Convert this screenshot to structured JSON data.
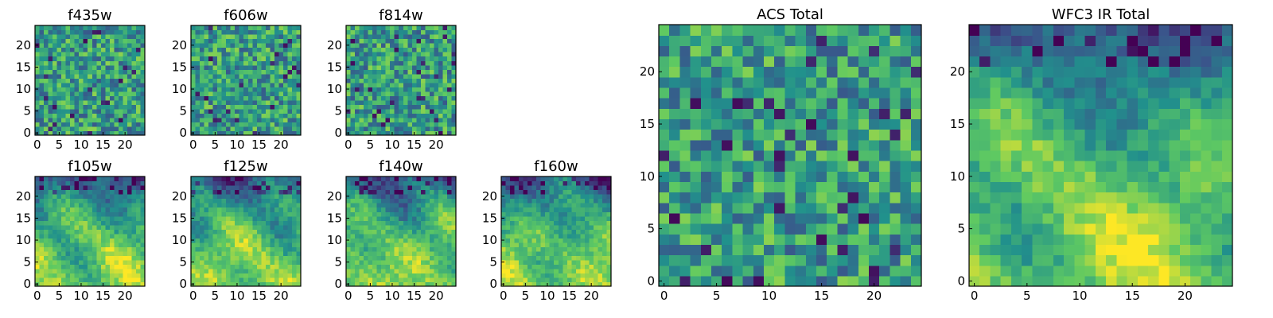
{
  "figure": {
    "description_free": true
  },
  "chart_data": [
    {
      "type": "heatmap",
      "title": "f435w",
      "grid": [
        25,
        25
      ],
      "pattern": "noise",
      "xticks": [
        "0",
        "5",
        "10",
        "15",
        "20"
      ],
      "yticks": [
        "0",
        "5",
        "10",
        "15",
        "20"
      ],
      "xlim": [
        0,
        25
      ],
      "ylim": [
        0,
        25
      ]
    },
    {
      "type": "heatmap",
      "title": "f606w",
      "grid": [
        25,
        25
      ],
      "pattern": "noise",
      "xticks": [
        "0",
        "5",
        "10",
        "15",
        "20"
      ],
      "yticks": [
        "0",
        "5",
        "10",
        "15",
        "20"
      ],
      "xlim": [
        0,
        25
      ],
      "ylim": [
        0,
        25
      ]
    },
    {
      "type": "heatmap",
      "title": "f814w",
      "grid": [
        25,
        25
      ],
      "pattern": "noise",
      "xticks": [
        "0",
        "5",
        "10",
        "15",
        "20"
      ],
      "yticks": [
        "0",
        "5",
        "10",
        "15",
        "20"
      ],
      "xlim": [
        0,
        25
      ],
      "ylim": [
        0,
        25
      ]
    },
    {
      "type": "heatmap",
      "title": "f105w",
      "grid": [
        25,
        25
      ],
      "pattern": "structured",
      "xticks": [
        "0",
        "5",
        "10",
        "15",
        "20"
      ],
      "yticks": [
        "0",
        "5",
        "10",
        "15",
        "20"
      ],
      "xlim": [
        0,
        25
      ],
      "ylim": [
        0,
        25
      ]
    },
    {
      "type": "heatmap",
      "title": "f125w",
      "grid": [
        25,
        25
      ],
      "pattern": "structured",
      "xticks": [
        "0",
        "5",
        "10",
        "15",
        "20"
      ],
      "yticks": [
        "0",
        "5",
        "10",
        "15",
        "20"
      ],
      "xlim": [
        0,
        25
      ],
      "ylim": [
        0,
        25
      ]
    },
    {
      "type": "heatmap",
      "title": "f140w",
      "grid": [
        25,
        25
      ],
      "pattern": "structured",
      "xticks": [
        "0",
        "5",
        "10",
        "15",
        "20"
      ],
      "yticks": [
        "0",
        "5",
        "10",
        "15",
        "20"
      ],
      "xlim": [
        0,
        25
      ],
      "ylim": [
        0,
        25
      ]
    },
    {
      "type": "heatmap",
      "title": "f160w",
      "grid": [
        25,
        25
      ],
      "pattern": "structured",
      "xticks": [
        "0",
        "5",
        "10",
        "15",
        "20"
      ],
      "yticks": [
        "0",
        "5",
        "10",
        "15",
        "20"
      ],
      "xlim": [
        0,
        25
      ],
      "ylim": [
        0,
        25
      ]
    },
    {
      "type": "heatmap",
      "title": "ACS Total",
      "grid": [
        25,
        25
      ],
      "pattern": "noise",
      "xticks": [
        "0",
        "5",
        "10",
        "15",
        "20"
      ],
      "yticks": [
        "0",
        "5",
        "10",
        "15",
        "20"
      ],
      "xlim": [
        0,
        25
      ],
      "ylim": [
        0,
        25
      ]
    },
    {
      "type": "heatmap",
      "title": "WFC3 IR Total",
      "grid": [
        25,
        25
      ],
      "pattern": "structured",
      "xticks": [
        "0",
        "5",
        "10",
        "15",
        "20"
      ],
      "yticks": [
        "0",
        "5",
        "10",
        "15",
        "20"
      ],
      "xlim": [
        0,
        25
      ],
      "ylim": [
        0,
        25
      ]
    }
  ],
  "colormap": [
    "#440154",
    "#3b528b",
    "#21918c",
    "#5ec962",
    "#fde725"
  ]
}
